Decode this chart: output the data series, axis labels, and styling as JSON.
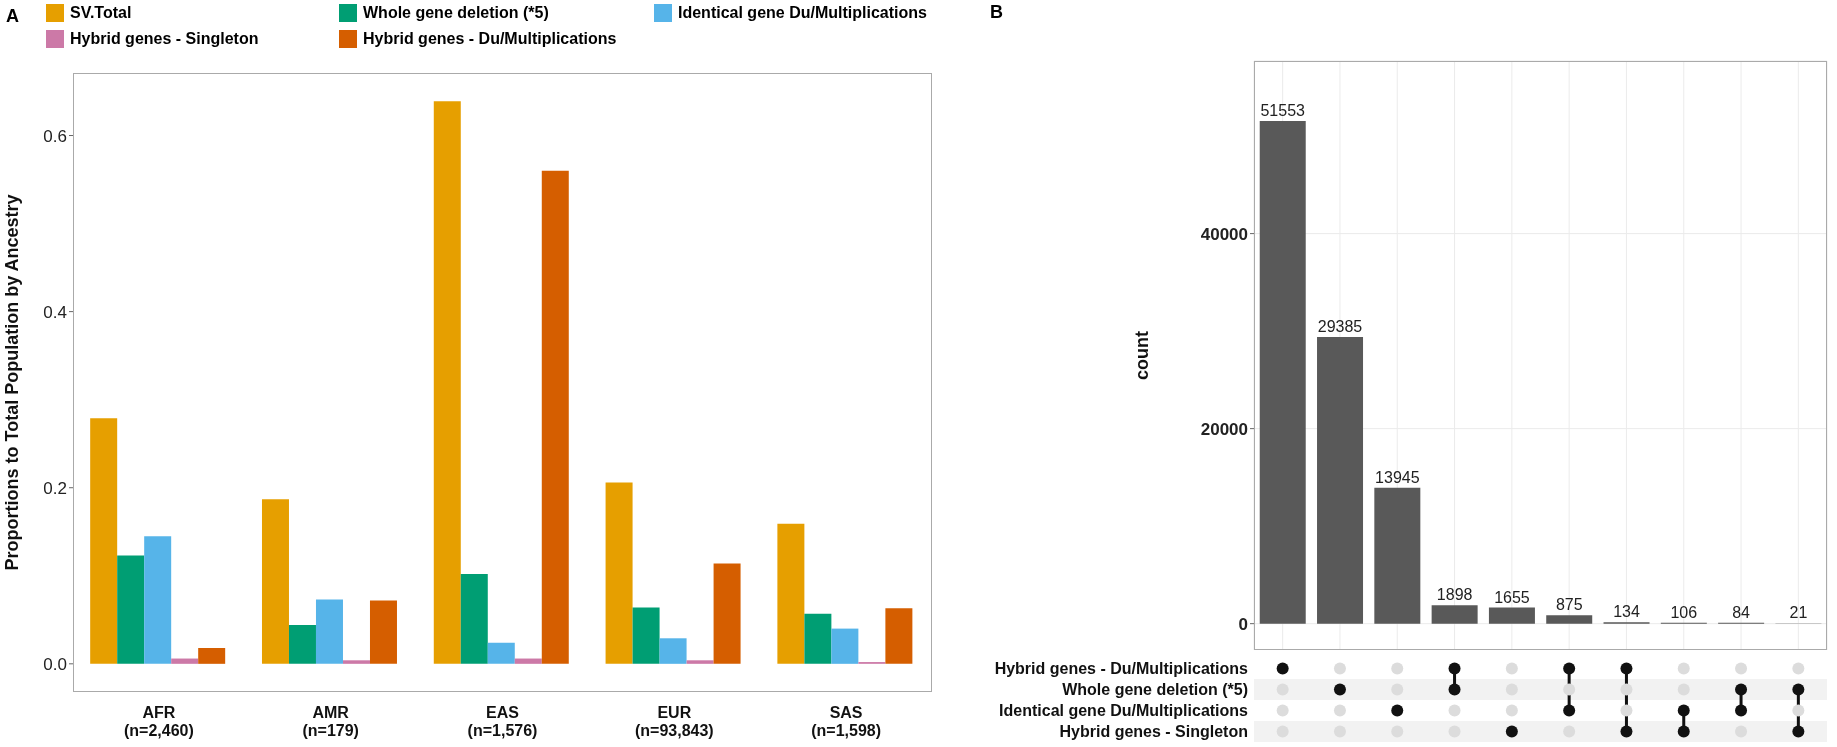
{
  "chart_data": [
    {
      "type": "bar",
      "ylabel": "Proportions to Total Population by Ancestry",
      "annotations": [
        "A"
      ],
      "categories": [
        "AFR\n(n=2,460)",
        "AMR\n(n=179)",
        "EAS\n(n=1,576)",
        "EUR\n(n=93,843)",
        "SAS\n(n=1,598)"
      ],
      "series": [
        {
          "name": "SV.Total",
          "color": "#e69f00",
          "values": [
            0.279,
            0.187,
            0.639,
            0.206,
            0.159
          ]
        },
        {
          "name": "Whole gene deletion (*5)",
          "color": "#009e73",
          "values": [
            0.123,
            0.044,
            0.102,
            0.064,
            0.057
          ]
        },
        {
          "name": "Identical gene Du/Multiplications",
          "color": "#56b4e9",
          "values": [
            0.145,
            0.073,
            0.024,
            0.029,
            0.04
          ]
        },
        {
          "name": "Hybrid genes - Singleton",
          "color": "#cc79a7",
          "values": [
            0.006,
            0.004,
            0.006,
            0.004,
            0.002
          ]
        },
        {
          "name": "Hybrid genes - Du/Multiplications",
          "color": "#d55e00",
          "values": [
            0.018,
            0.072,
            0.56,
            0.114,
            0.063
          ]
        }
      ],
      "ylim": [
        -0.032,
        0.671
      ],
      "yticks": [
        {
          "value": 0,
          "label": "0.0"
        },
        0.2,
        0.4,
        0.6
      ],
      "grid": false,
      "legend": "top"
    },
    {
      "type": "bar",
      "ylabel": "count",
      "annotations": [
        "B",
        "Hybrid genes - Du/Multiplications",
        "Whole gene deletion (*5)",
        "Identical gene Du/Multiplications",
        "Hybrid genes - Singleton"
      ],
      "categories": [
        null,
        null,
        null,
        null,
        null,
        null,
        null,
        null,
        null,
        null
      ],
      "values": [
        51553,
        29385,
        13945,
        1898,
        1655,
        875,
        134,
        106,
        84,
        21
      ],
      "color": "#595959",
      "ylim": [
        -2700,
        57700
      ],
      "yticks": [
        0,
        20000,
        40000
      ],
      "grid": true,
      "data_labels": true
    }
  ]
}
